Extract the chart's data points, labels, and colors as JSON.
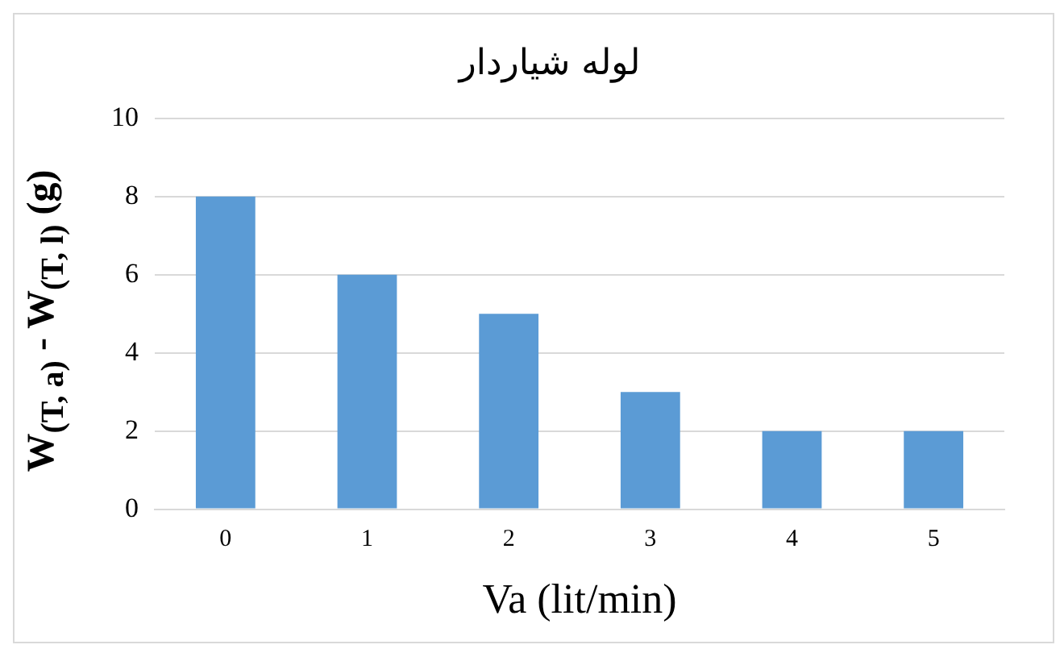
{
  "chart_data": {
    "type": "bar",
    "title": "لوله شیاردار",
    "xlabel": "Va (lit/min)",
    "ylabel": "W$_{(T, a)}$ - W$_{(T, l)}$ (g)",
    "categories": [
      "0",
      "1",
      "2",
      "3",
      "4",
      "5"
    ],
    "values": [
      8,
      6,
      5,
      3,
      2,
      2
    ],
    "color": "#5b9bd5",
    "ylim": [
      0,
      10
    ],
    "yticks": [
      0,
      2,
      4,
      6,
      8,
      10
    ],
    "grid": "y",
    "legend": false
  }
}
